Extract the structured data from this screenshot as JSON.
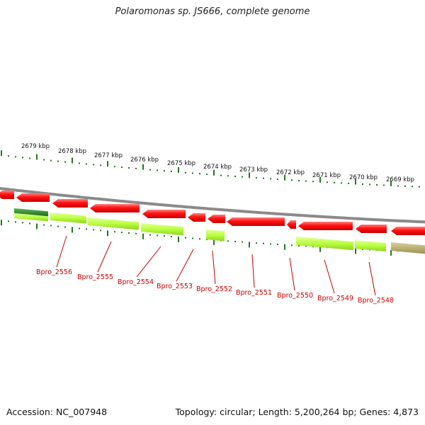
{
  "title": "Polaromonas sp. JS666, complete genome",
  "footer": {
    "accession": "Accession: NC_007948",
    "summary": "Topology: circular; Length: 5,200,264 bp; Genes: 4,873"
  },
  "colors": {
    "backbone": "#8a8a8a",
    "forward_gene": "#ff1a1a",
    "reverse_gene": "#b2ff3a",
    "dark_green": "#2f8a2f",
    "olive": "#b3a766",
    "tick": "#1f7a1f",
    "label": "#cc0000"
  },
  "scale": {
    "unit": "kbp",
    "labels": [
      "2679 kbp",
      "2678 kbp",
      "2677 kbp",
      "2676 kbp",
      "2675 kbp",
      "2674 kbp",
      "2673 kbp",
      "2672 kbp",
      "2671 kbp",
      "2670 kbp",
      "2669 kbp"
    ]
  },
  "gene_labels": [
    "Bpro_2556",
    "Bpro_2555",
    "Bpro_2554",
    "Bpro_2553",
    "Bpro_2552",
    "Bpro_2551",
    "Bpro_2550",
    "Bpro_2549",
    "Bpro_2548"
  ]
}
